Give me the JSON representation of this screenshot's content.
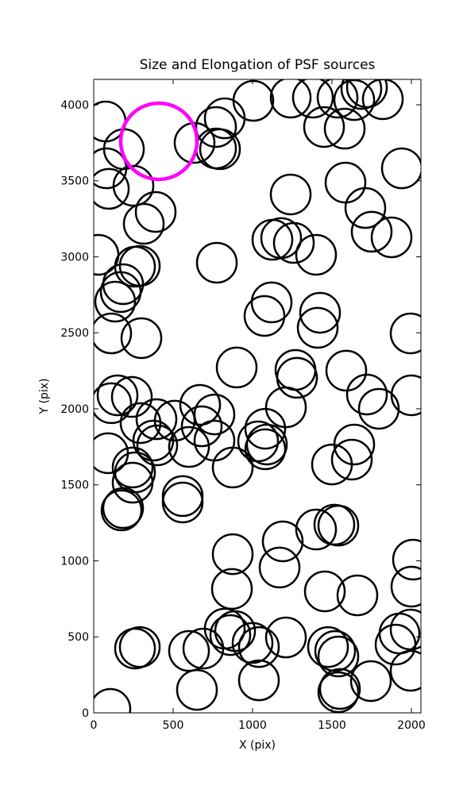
{
  "chart_data": {
    "type": "scatter",
    "title": "Size and Elongation of PSF sources",
    "x_label": "X (pix)",
    "y_label": "Y (pix)",
    "xlim": [
      0,
      2060
    ],
    "ylim": [
      0,
      4167
    ],
    "xticks": [
      0,
      500,
      1000,
      1500,
      2000
    ],
    "yticks": [
      0,
      500,
      1000,
      1500,
      2000,
      2500,
      3000,
      3500,
      4000
    ],
    "grid": false,
    "series": [
      {
        "color": "#000000",
        "x": [
          105,
          260,
          290,
          650,
          600,
          690,
          825,
          860,
          890,
          1000,
          1040,
          1040,
          1210,
          1475,
          1520,
          1540,
          1540,
          1550,
          1745,
          1900,
          1925,
          1995,
          1995,
          870,
          875,
          1170,
          1190,
          1400,
          1515,
          1540,
          1455,
          1660,
          2000,
          2010,
          185,
          175,
          245,
          260,
          245,
          560,
          560,
          875,
          600,
          680,
          760,
          400,
          375,
          295,
          395,
          510,
          670,
          760,
          240,
          110,
          150,
          90,
          1035,
          1080,
          1090,
          1080,
          1210,
          1500,
          1625,
          1640,
          1270,
          1280,
          900,
          1590,
          1720,
          1795,
          2000,
          110,
          300,
          135,
          170,
          185,
          260,
          290,
          1120,
          1075,
          1410,
          1425,
          1995,
          775,
          30,
          1260,
          1400,
          1125,
          1180,
          1240,
          315,
          390,
          1585,
          1710,
          1750,
          1875,
          1940,
          75,
          80,
          95,
          190,
          250,
          635,
          770,
          795,
          770,
          825,
          1005,
          1240,
          1380,
          1450,
          1580,
          1535,
          1640,
          1685,
          1720,
          1820
        ],
        "values": [
          26,
          423,
          433,
          151,
          407,
          423,
          554,
          512,
          538,
          460,
          433,
          214,
          496,
          433,
          407,
          371,
          136,
          157,
          209,
          449,
          522,
          277,
          548,
          815,
          1044,
          956,
          1128,
          1206,
          1238,
          1232,
          799,
          773,
          830,
          1008,
          1347,
          1332,
          1514,
          1582,
          1614,
          1426,
          1384,
          1614,
          1749,
          1885,
          1791,
          1760,
          1791,
          1906,
          1932,
          1922,
          2026,
          1963,
          2078,
          2037,
          2089,
          1708,
          1786,
          1734,
          1765,
          1869,
          2010,
          1634,
          1666,
          1765,
          2256,
          2204,
          2272,
          2251,
          2094,
          2000,
          2089,
          2496,
          2465,
          2705,
          2768,
          2820,
          2935,
          2940,
          2700,
          2611,
          2533,
          2632,
          2496,
          2961,
          3013,
          3091,
          3013,
          3112,
          3123,
          3410,
          3217,
          3295,
          3488,
          3321,
          3165,
          3128,
          3582,
          3890,
          3582,
          3447,
          3708,
          3467,
          3749,
          3713,
          3708,
          3854,
          3911,
          4026,
          4047,
          4047,
          3854,
          3843,
          4047,
          4031,
          4104,
          4115,
          4037
        ]
      },
      {
        "color": "#ff00ff",
        "x": [
          410
        ],
        "values": [
          3760
        ]
      }
    ]
  }
}
